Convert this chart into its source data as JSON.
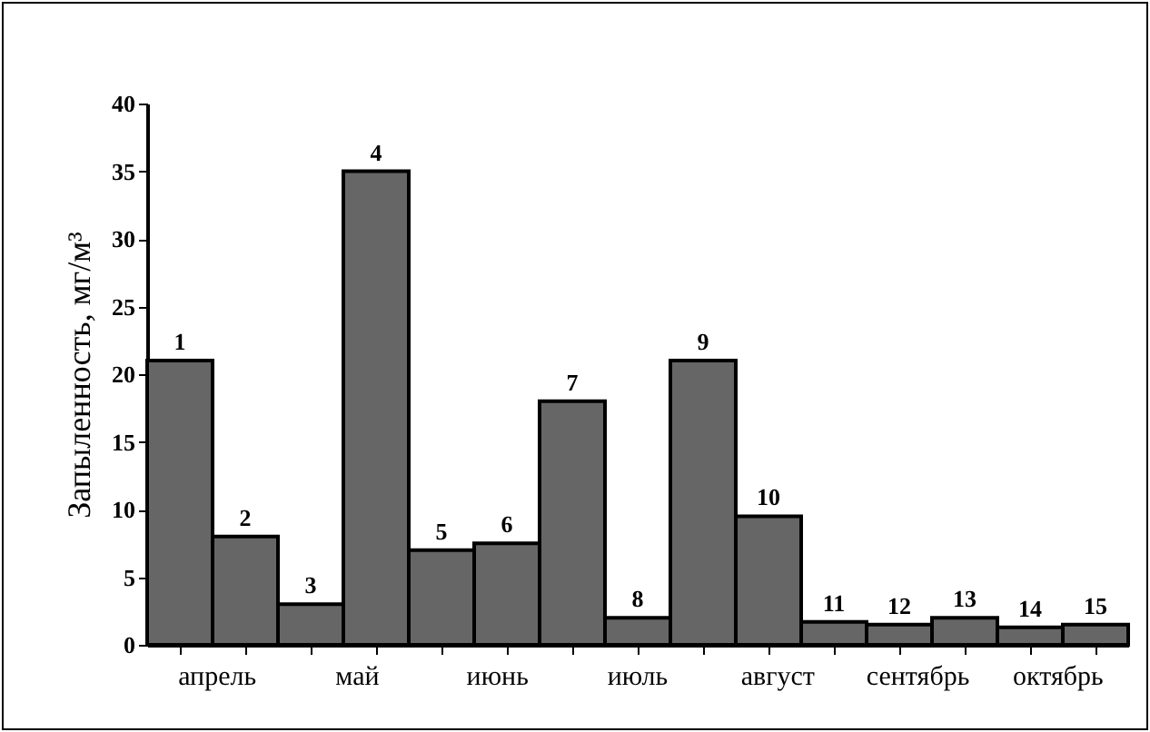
{
  "chart_data": {
    "type": "bar",
    "ylabel": "Запыленность, мг/м³",
    "categories": [
      "1",
      "2",
      "3",
      "4",
      "5",
      "6",
      "7",
      "8",
      "9",
      "10",
      "11",
      "12",
      "13",
      "14",
      "15"
    ],
    "values": [
      21,
      8,
      3,
      35,
      7,
      7.5,
      18,
      2,
      21,
      9.5,
      1.7,
      1.5,
      2,
      1.3,
      1.5
    ],
    "color": "#666666",
    "ylim": [
      0,
      40
    ],
    "yticks": [
      0,
      5,
      10,
      15,
      20,
      25,
      30,
      35,
      40
    ],
    "grid": false,
    "annotations": [
      "апрель",
      "май",
      "июнь",
      "июль",
      "август",
      "сентябрь",
      "октябрь"
    ]
  }
}
